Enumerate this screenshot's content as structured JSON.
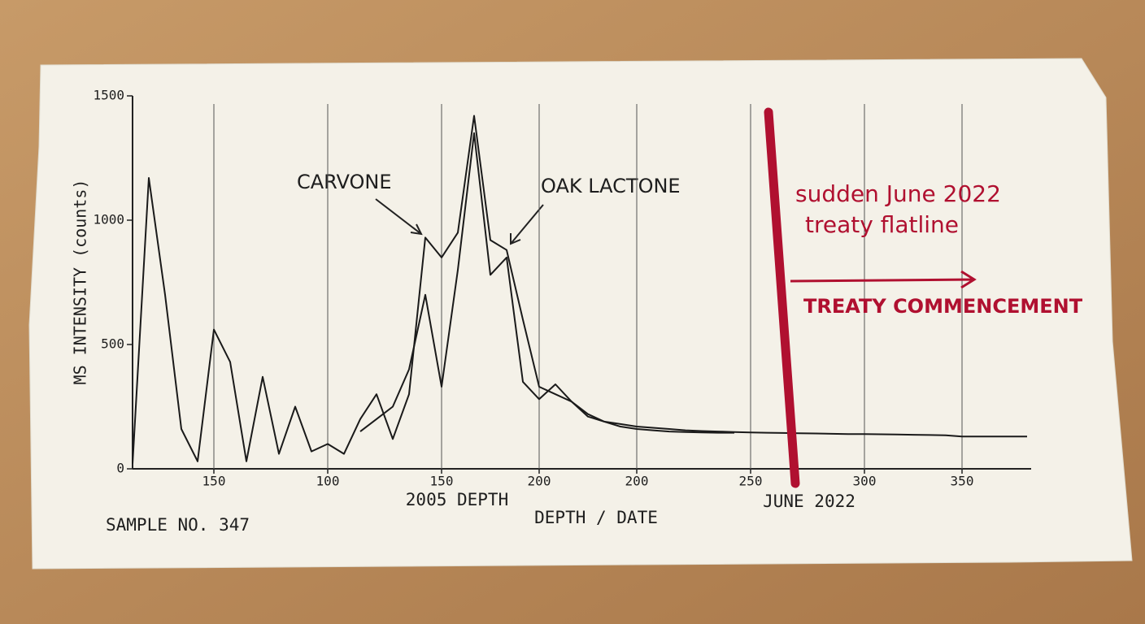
{
  "chart_data": {
    "type": "line",
    "y_label": "MS INTENSITY (counts)",
    "x_label": "DEPTH / DATE",
    "sample_label": "SAMPLE NO. 347",
    "annotations": {
      "carvone": "CARVONE",
      "oak_lactone": "OAK LACTONE",
      "depth_2005": "2005 DEPTH",
      "june_2022": "JUNE 2022",
      "flatline_line1": "sudden June 2022",
      "flatline_line2": "treaty flatline",
      "commencement": "TREATY COMMENCEMENT"
    },
    "categories": [
      null,
      null,
      null,
      null,
      null,
      "150",
      null,
      null,
      null,
      null,
      null,
      null,
      "100",
      null,
      null,
      null,
      null,
      null,
      null,
      "150",
      null,
      null,
      null,
      null,
      null,
      "200",
      null,
      null,
      null,
      null,
      null,
      "200",
      null,
      null,
      null,
      null,
      null,
      null,
      "250",
      null,
      null,
      null,
      null,
      null,
      null,
      "300",
      null,
      null,
      null,
      null,
      null,
      "350",
      null,
      null,
      null,
      null
    ],
    "series": [
      {
        "color": "#1a1a1a",
        "values": [
          20,
          1170,
          700,
          160,
          30,
          560,
          430,
          30,
          370,
          60,
          250,
          70,
          100,
          60,
          200,
          300,
          120,
          300,
          930,
          850,
          950,
          1420,
          920,
          880,
          600,
          330,
          300,
          270,
          210,
          190,
          180,
          170,
          165,
          160,
          155,
          152,
          150,
          148,
          146,
          145,
          144,
          143,
          142,
          141,
          140,
          140,
          139,
          138,
          137,
          136,
          135,
          130,
          130,
          130,
          130,
          130
        ]
      },
      {
        "color": "#1a1a1a",
        "values": [
          null,
          null,
          null,
          null,
          null,
          null,
          null,
          null,
          null,
          null,
          null,
          null,
          null,
          null,
          150,
          200,
          250,
          400,
          700,
          330,
          800,
          1350,
          780,
          850,
          350,
          280,
          340,
          270,
          220,
          190,
          170,
          160,
          155,
          150,
          148,
          146,
          145,
          145,
          null,
          null,
          null,
          null,
          null,
          null,
          null,
          null,
          null,
          null,
          null,
          null,
          null,
          null,
          null,
          null,
          null,
          null
        ]
      }
    ],
    "ylim": [
      0,
      1500
    ],
    "yticks": [
      0,
      500,
      1000,
      1500
    ]
  }
}
